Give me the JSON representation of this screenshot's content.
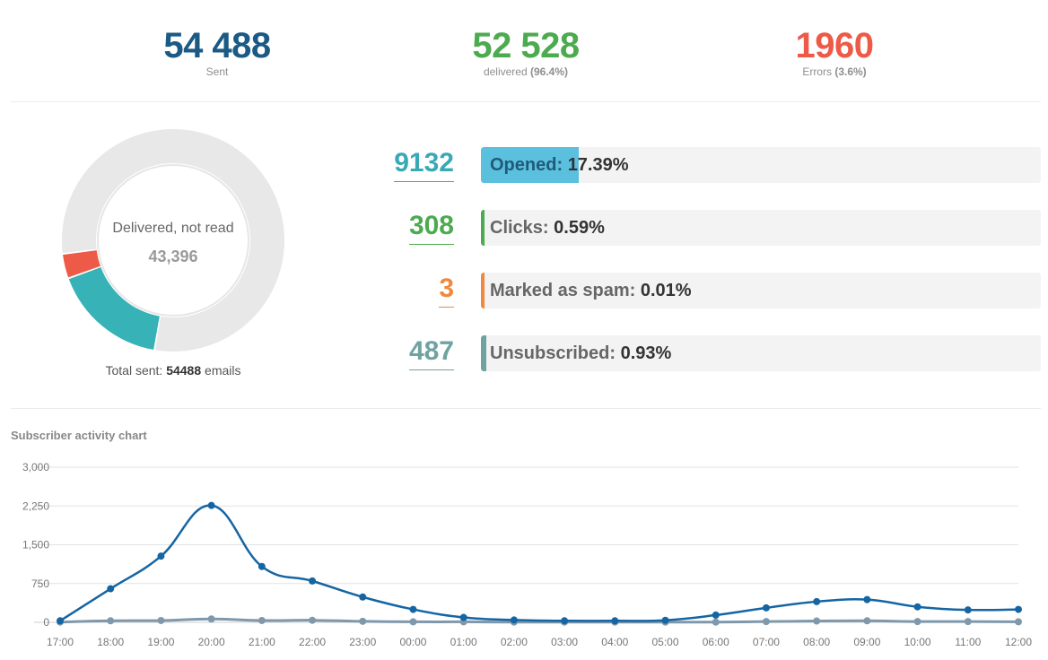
{
  "summary": {
    "sent": {
      "value": "54 488",
      "label": "Sent",
      "color": "#1a5a84"
    },
    "delivered": {
      "value": "52 528",
      "label": "delivered",
      "percent": "(96.4%)",
      "color": "#4caa4f"
    },
    "errors": {
      "value": "1960",
      "label": "Errors",
      "percent": "(3.6%)",
      "color": "#ee5a48"
    }
  },
  "donut": {
    "center_label": "Delivered, not read",
    "center_value": "43,396",
    "total_prefix": "Total sent:",
    "total_value": "54488",
    "total_suffix": "emails",
    "segments": [
      {
        "name": "Delivered, not read",
        "value": 43396,
        "color": "#e8e8e8"
      },
      {
        "name": "Opened",
        "value": 9132,
        "color": "#37b2b6"
      },
      {
        "name": "Errors",
        "value": 1960,
        "color": "#ee5a48"
      }
    ]
  },
  "metrics": [
    {
      "number": "9132",
      "name": "Opened:",
      "value": "17.39%",
      "fraction": 0.1739,
      "color": "#37aab5",
      "fill": "#5bc0de"
    },
    {
      "number": "308",
      "name": "Clicks:",
      "value": "0.59%",
      "fraction": 0.0059,
      "color": "#4caa4f",
      "fill": "#4caa4f"
    },
    {
      "number": "3",
      "name": "Marked as spam:",
      "value": "0.01%",
      "fraction": 0.0001,
      "color": "#f0883e",
      "fill": "#f0883e"
    },
    {
      "number": "487",
      "name": "Unsubscribed:",
      "value": "0.93%",
      "fraction": 0.0093,
      "color": "#6fa3a0",
      "fill": "#6fa3a0"
    }
  ],
  "chart_data": {
    "type": "line",
    "title": "Subscriber activity chart",
    "categories": [
      "17:00",
      "18:00",
      "19:00",
      "20:00",
      "21:00",
      "22:00",
      "23:00",
      "00:00",
      "01:00",
      "02:00",
      "03:00",
      "04:00",
      "05:00",
      "06:00",
      "07:00",
      "08:00",
      "09:00",
      "10:00",
      "11:00",
      "12:00"
    ],
    "yticks": [
      "0",
      "750",
      "1,500",
      "2,250",
      "3,000"
    ],
    "ylim": [
      0,
      3000
    ],
    "series": [
      {
        "values": [
          30,
          650,
          1280,
          2260,
          1080,
          800,
          490,
          250,
          95,
          45,
          30,
          30,
          40,
          140,
          280,
          400,
          440,
          300,
          240,
          250
        ],
        "color": "#1565a3"
      },
      {
        "values": [
          5,
          30,
          35,
          65,
          35,
          40,
          20,
          10,
          10,
          5,
          5,
          5,
          5,
          5,
          15,
          25,
          30,
          15,
          15,
          10
        ],
        "color": "#7f98ab"
      }
    ],
    "grid": true
  }
}
